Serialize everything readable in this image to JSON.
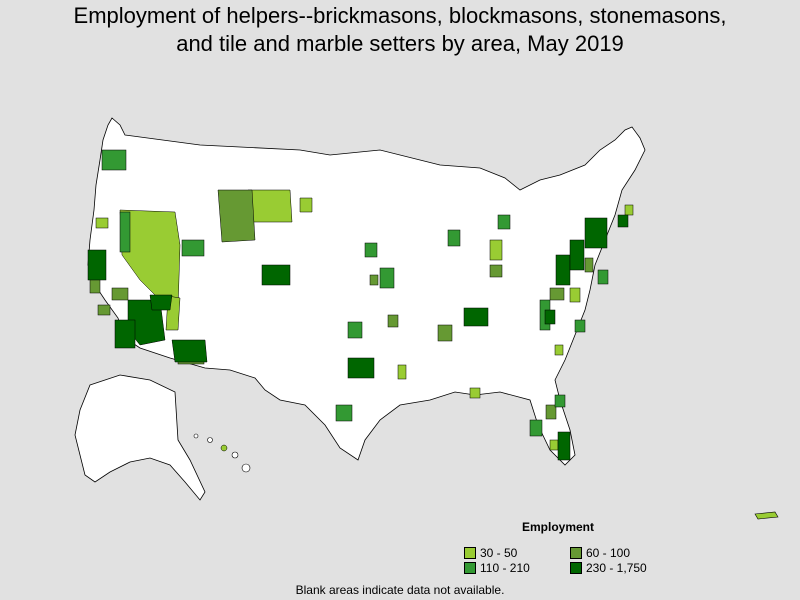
{
  "title_line1": "Employment of helpers--brickmasons, blockmasons, stonemasons,",
  "title_line2": "and tile and marble setters by area, May 2019",
  "legend": {
    "title": "Employment",
    "items": [
      {
        "label": "30 - 50",
        "color": "#99cc33"
      },
      {
        "label": "60 - 100",
        "color": "#669933"
      },
      {
        "label": "110 - 210",
        "color": "#339933"
      },
      {
        "label": "230 - 1,750",
        "color": "#006600"
      }
    ]
  },
  "footnote": "Blank areas indicate data not available.",
  "colors": {
    "background": "#e1e1e1",
    "land": "#ffffff",
    "border": "#000000",
    "no_data": "#ffffff"
  }
}
